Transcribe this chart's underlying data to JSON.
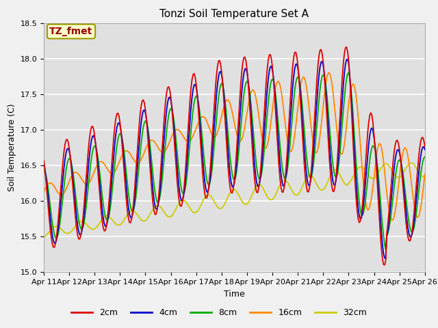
{
  "title": "Tonzi Soil Temperature Set A",
  "ylabel": "Soil Temperature (C)",
  "xlabel": "Time",
  "annotation": "TZ_fmet",
  "ylim": [
    15.0,
    18.5
  ],
  "xlim": [
    0,
    15
  ],
  "x_labels": [
    "Apr 11",
    "Apr 12",
    "Apr 13",
    "Apr 14",
    "Apr 15",
    "Apr 16",
    "Apr 17",
    "Apr 18",
    "Apr 19",
    "Apr 20",
    "Apr 21",
    "Apr 22",
    "Apr 23",
    "Apr 24",
    "Apr 25",
    "Apr 26"
  ],
  "colors": {
    "2cm": "#dd0000",
    "4cm": "#0000cc",
    "8cm": "#00aa00",
    "16cm": "#ff8800",
    "32cm": "#cccc00"
  },
  "fig_facecolor": "#f0f0f0",
  "ax_facecolor": "#e0e0e0",
  "grid_color": "#ffffff",
  "annotation_bg": "#ffffcc",
  "annotation_border": "#999900",
  "annotation_text_color": "#990000",
  "title_fontsize": 11,
  "label_fontsize": 9,
  "tick_fontsize": 8,
  "legend_fontsize": 9
}
